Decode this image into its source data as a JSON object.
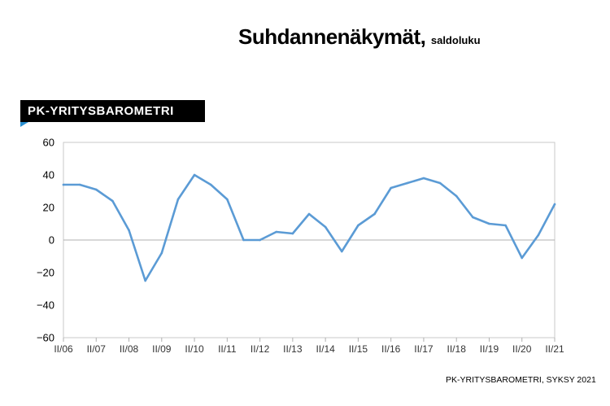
{
  "header": {
    "title": "Suhdannenäkymät,",
    "subtitle": "saldoluku"
  },
  "tag": {
    "label": "PK-YRITYSBAROMETRI"
  },
  "footer": {
    "source": "PK-YRITYSBAROMETRI, SYKSY 2021"
  },
  "colors": {
    "line": "#5b9bd5",
    "tag_bg": "#000000",
    "accent": "#2a8fd0"
  },
  "chart_data": {
    "type": "line",
    "title": "Suhdannenäkymät, saldoluku",
    "xlabel": "",
    "ylabel": "",
    "ylim": [
      -60,
      60
    ],
    "yticks": [
      60,
      40,
      20,
      0,
      -20,
      -40,
      -60
    ],
    "ytick_labels": [
      "60",
      "40",
      "20",
      "0",
      "−20",
      "−40",
      "−60"
    ],
    "x_tick_labels": [
      "II/06",
      "II/07",
      "II/08",
      "II/09",
      "II/10",
      "II/11",
      "II/12",
      "II/13",
      "II/14",
      "II/15",
      "II/16",
      "II/17",
      "II/18",
      "II/19",
      "II/20",
      "II/21"
    ],
    "x": [
      "II/06",
      "I/07",
      "II/07",
      "I/08",
      "II/08",
      "I/09",
      "II/09",
      "I/10",
      "II/10",
      "I/11",
      "II/11",
      "I/12",
      "II/12",
      "I/13",
      "II/13",
      "I/14",
      "II/14",
      "I/15",
      "II/15",
      "I/16",
      "II/16",
      "I/17",
      "II/17",
      "I/18",
      "II/18",
      "I/19",
      "II/19",
      "I/20",
      "II/20",
      "I/21",
      "II/21"
    ],
    "series": [
      {
        "values": [
          34,
          34,
          31,
          24,
          6,
          -25,
          -8,
          25,
          40,
          34,
          25,
          0,
          0,
          5,
          4,
          16,
          8,
          -7,
          9,
          16,
          32,
          35,
          38,
          35,
          27,
          14,
          10,
          9,
          -11,
          3,
          22
        ]
      }
    ],
    "grid": false,
    "legend": "none"
  }
}
